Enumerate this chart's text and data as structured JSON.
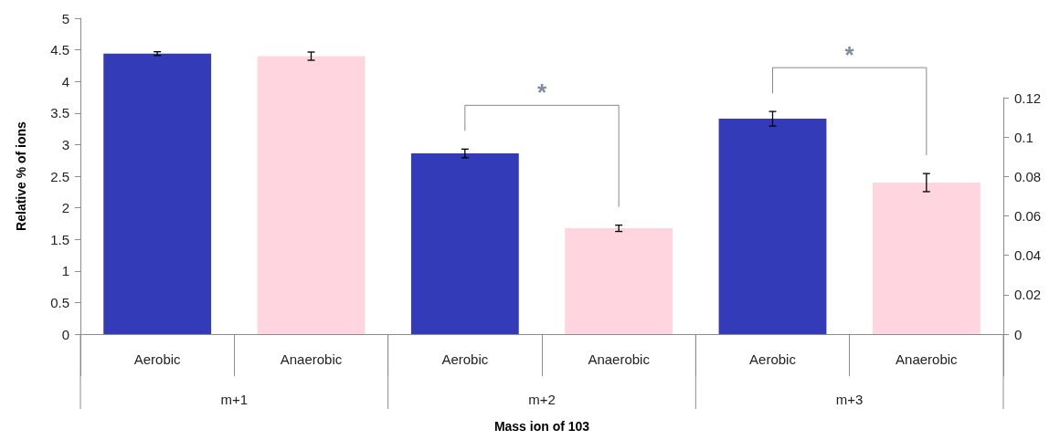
{
  "chart_data": {
    "type": "bar",
    "xlabel": "Mass ion of 103",
    "ylabel": "Relative % of ions",
    "categories": [
      "Aerobic",
      "Anaerobic",
      "Aerobic",
      "Anaerobic",
      "Aerobic",
      "Anaerobic"
    ],
    "series": [
      {
        "axis": "y",
        "colors": [
          "#333bb8",
          "#ffd5df",
          null,
          null,
          null,
          null
        ],
        "values": [
          4.44,
          4.4,
          null,
          null,
          null,
          null
        ],
        "errors": [
          0.03,
          0.065,
          null,
          null,
          null,
          null
        ]
      },
      {
        "axis": "y2",
        "colors": [
          null,
          null,
          "#333bb8",
          "#ffd5df",
          "#333bb8",
          "#ffd5df"
        ],
        "values": [
          null,
          null,
          0.0917,
          0.0537,
          0.1093,
          0.0769
        ],
        "errors": [
          null,
          null,
          0.0022,
          0.0016,
          0.0037,
          0.0046
        ]
      }
    ],
    "ylim": [
      0,
      5
    ],
    "yticks": [
      0,
      0.5,
      1,
      1.5,
      2,
      2.5,
      3,
      3.5,
      4,
      4.5,
      5
    ],
    "y2lim": [
      0,
      0.12
    ],
    "y2ticks": [
      0,
      0.02,
      0.04,
      0.06,
      0.08,
      0.1,
      0.12
    ],
    "annotations": [
      "m+1",
      "m+2",
      "m+3",
      "*",
      "*"
    ]
  }
}
